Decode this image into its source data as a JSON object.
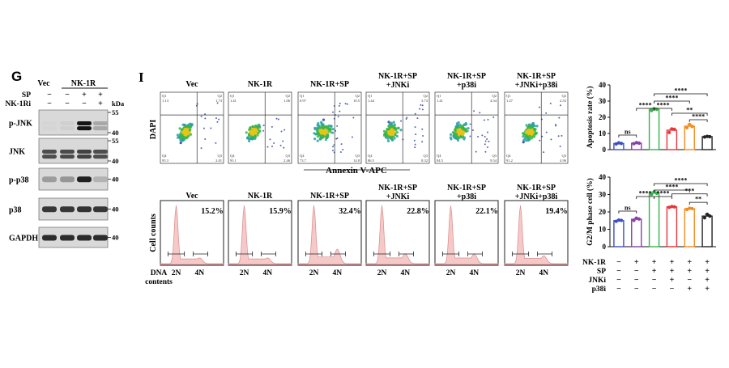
{
  "panel_g": {
    "letter": "G",
    "header_vec": "Vec",
    "header_nk1r": "NK-1R",
    "row_labels": [
      "SP",
      "NK-1Ri"
    ],
    "treatment_rows": [
      [
        "−",
        "−",
        "+",
        "+"
      ],
      [
        "−",
        "−",
        "−",
        "+"
      ]
    ],
    "kda_label": "kDa",
    "blots": [
      {
        "label": "p-JNK",
        "markers": [
          "55",
          "40"
        ],
        "bands": [
          0.1,
          0.12,
          0.95,
          0.3
        ],
        "doublet": true
      },
      {
        "label": "JNK",
        "markers": [
          "55",
          "40"
        ],
        "bands": [
          0.7,
          0.72,
          0.75,
          0.7
        ],
        "doublet": true
      },
      {
        "label": "p-p38",
        "markers": [
          "40"
        ],
        "bands": [
          0.35,
          0.38,
          0.9,
          0.25
        ],
        "doublet": false
      },
      {
        "label": "p38",
        "markers": [
          "40"
        ],
        "bands": [
          0.8,
          0.8,
          0.82,
          0.8
        ],
        "doublet": false
      },
      {
        "label": "GAPDH",
        "markers": [
          "40"
        ],
        "bands": [
          0.85,
          0.85,
          0.85,
          0.85
        ],
        "doublet": false
      }
    ]
  },
  "panel_i": {
    "letter": "I",
    "groups": [
      "Vec",
      "NK-1R",
      "NK-1R+SP",
      "NK-1R+SP\n+JNKi",
      "NK-1R+SP\n+p38i",
      "NK-1R+SP\n+JNKi+p38i"
    ],
    "flow": {
      "ylabel": "DAPI",
      "xlabel": "Annexin V-APC",
      "quadrants": [
        {
          "q1": "Q1",
          "q1v": "1.13",
          "q2": "Q2",
          "q2v": "1.73",
          "q3": "Q3",
          "q3v": "2.01",
          "q4": "Q4",
          "q4v": "95.3"
        },
        {
          "q1": "Q1",
          "q1v": "1.41",
          "q2": "Q2",
          "q2v": "1.06",
          "q3": "Q3",
          "q3v": "2.46",
          "q4": "Q4",
          "q4v": "95.1"
        },
        {
          "q1": "Q1",
          "q1v": "0.97",
          "q2": "Q2",
          "q2v": "10.5",
          "q3": "Q3",
          "q3v": "14.8",
          "q4": "Q4",
          "q4v": "73.7"
        },
        {
          "q1": "Q1",
          "q1v": "1.44",
          "q2": "Q2",
          "q2v": "3.73",
          "q3": "Q3",
          "q3v": "8.32",
          "q4": "Q4",
          "q4v": "86.5"
        },
        {
          "q1": "Q1",
          "q1v": "1.41",
          "q2": "Q2",
          "q2v": "4.54",
          "q3": "Q3",
          "q3v": "9.54",
          "q4": "Q4",
          "q4v": "84.5"
        },
        {
          "q1": "Q1",
          "q1v": "1.27",
          "q2": "Q2",
          "q2v": "2.53",
          "q3": "Q3",
          "q3v": "4.96",
          "q4": "Q4",
          "q4v": "91.2"
        }
      ]
    },
    "cellcycle": {
      "ylabel": "Cell counts",
      "percents": [
        "15.2%",
        "15.9%",
        "32.4%",
        "22.8%",
        "22.1%",
        "19.4%"
      ],
      "x_title_1": "DNA",
      "x_title_2": "contents",
      "tick_2n": "2N",
      "tick_4n": "4N"
    }
  },
  "bar_charts": {
    "treatment_labels": [
      "NK-1R",
      "SP",
      "JNKi",
      "p38i"
    ],
    "treatment_signs": [
      [
        "−",
        "+",
        "+",
        "+",
        "+",
        "+"
      ],
      [
        "−",
        "−",
        "+",
        "+",
        "+",
        "+"
      ],
      [
        "−",
        "−",
        "−",
        "+",
        "−",
        "+"
      ],
      [
        "−",
        "−",
        "−",
        "−",
        "+",
        "+"
      ]
    ],
    "colors": [
      "#3b4fc4",
      "#8a3fa8",
      "#35b24a",
      "#e8343a",
      "#f28c1e",
      "#222222"
    ]
  },
  "chart_data": [
    {
      "type": "bar",
      "ylabel": "Apoptosis rate (%)",
      "ylim": [
        0,
        40
      ],
      "yticks": [
        "0",
        "10",
        "20",
        "30",
        "40"
      ],
      "values": [
        3.8,
        4.0,
        24.8,
        12.0,
        14.5,
        8.0
      ],
      "points": [
        [
          3.5,
          4.2,
          3.8
        ],
        [
          3.7,
          4.3,
          4.0
        ],
        [
          24.2,
          25.4,
          24.9
        ],
        [
          10.6,
          12.8,
          12.6
        ],
        [
          13.6,
          15.6,
          14.3
        ],
        [
          7.8,
          8.2,
          8.0
        ]
      ],
      "significance": [
        {
          "label": "ns",
          "from": 0,
          "to": 1,
          "level": 1
        },
        {
          "label": "****",
          "from": 1,
          "to": 2,
          "level": 1
        },
        {
          "label": "****",
          "from": 2,
          "to": 3,
          "level": 1
        },
        {
          "label": "****",
          "from": 2,
          "to": 4,
          "level": 2
        },
        {
          "label": "****",
          "from": 2,
          "to": 5,
          "level": 3
        },
        {
          "label": "**",
          "from": 3,
          "to": 5,
          "level": 2
        },
        {
          "label": "****",
          "from": 4,
          "to": 5,
          "level": 1
        }
      ]
    },
    {
      "type": "bar",
      "ylabel": "G2/M phase cell (%)",
      "ylim": [
        0,
        40
      ],
      "yticks": [
        "0",
        "10",
        "20",
        "30",
        "40"
      ],
      "values": [
        15.0,
        15.8,
        30.8,
        22.9,
        21.8,
        17.6
      ],
      "points": [
        [
          14.6,
          15.3,
          15.1
        ],
        [
          15.1,
          16.4,
          15.9
        ],
        [
          30.1,
          31.6,
          30.7
        ],
        [
          22.6,
          23.1,
          22.9
        ],
        [
          21.4,
          22.1,
          21.9
        ],
        [
          16.6,
          18.6,
          17.6
        ]
      ],
      "significance": [
        {
          "label": "ns",
          "from": 0,
          "to": 1,
          "level": 1
        },
        {
          "label": "****",
          "from": 1,
          "to": 2,
          "level": 1
        },
        {
          "label": "****",
          "from": 2,
          "to": 3,
          "level": 1
        },
        {
          "label": "****",
          "from": 2,
          "to": 4,
          "level": 2
        },
        {
          "label": "****",
          "from": 2,
          "to": 5,
          "level": 3
        },
        {
          "label": "***",
          "from": 3,
          "to": 5,
          "level": 2
        },
        {
          "label": "**",
          "from": 4,
          "to": 5,
          "level": 1
        }
      ]
    }
  ]
}
